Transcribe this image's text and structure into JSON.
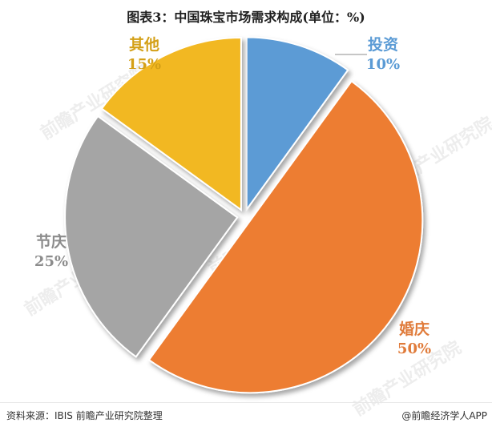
{
  "chart_data": {
    "type": "pie",
    "title": "图表3：中国珠宝市场需求构成(单位：%)",
    "unit": "%",
    "slices": [
      {
        "label": "投资",
        "value": 10,
        "value_label": "10%",
        "color": "#5b9bd5",
        "label_color": "#5b9bd5"
      },
      {
        "label": "婚庆",
        "value": 50,
        "value_label": "50%",
        "color": "#ed7d31",
        "label_color": "#e07b3a"
      },
      {
        "label": "节庆",
        "value": 25,
        "value_label": "25%",
        "color": "#a5a5a5",
        "label_color": "#8c8c8c"
      },
      {
        "label": "其他",
        "value": 15,
        "value_label": "15%",
        "color": "#f2b824",
        "label_color": "#d4a017"
      }
    ]
  },
  "footer": {
    "source": "资料来源：IBIS 前瞻产业研究院整理",
    "brand": "@前瞻经济学人APP"
  },
  "watermark": "前瞻产业研究院"
}
